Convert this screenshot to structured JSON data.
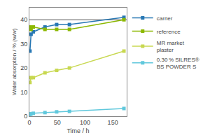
{
  "chart_data": {
    "type": "line",
    "x_label": "Time / h",
    "y_label": "Water absorption / % (w/w)",
    "x": [
      1,
      3,
      7,
      28,
      49,
      72,
      170
    ],
    "series": [
      {
        "name": "carrier",
        "color": "#2878b4",
        "marker": "square",
        "values": [
          27,
          34,
          35,
          37,
          38,
          38,
          41
        ]
      },
      {
        "name": "reference",
        "color": "#8cb800",
        "marker": "square",
        "values": [
          37,
          36,
          37,
          36,
          36,
          36,
          40
        ]
      },
      {
        "name": "MR market\nplaster",
        "color": "#c8d850",
        "marker": "square",
        "values": [
          14,
          16,
          16,
          18,
          19,
          20,
          27
        ]
      },
      {
        "name": "0.30 % SILRES®\nBS POWDER S",
        "color": "#60c8dc",
        "marker": "square",
        "values": [
          0.5,
          1.0,
          1.2,
          1.5,
          1.8,
          2.0,
          3.2
        ]
      }
    ],
    "hline": {
      "y": 40,
      "color": "#555555"
    },
    "xlim": [
      0,
      175
    ],
    "ylim": [
      0,
      45
    ],
    "xticks": [
      0,
      50,
      100,
      150
    ],
    "yticks": [
      0,
      10,
      20,
      30,
      40
    ],
    "grid": false,
    "legend": "right"
  }
}
